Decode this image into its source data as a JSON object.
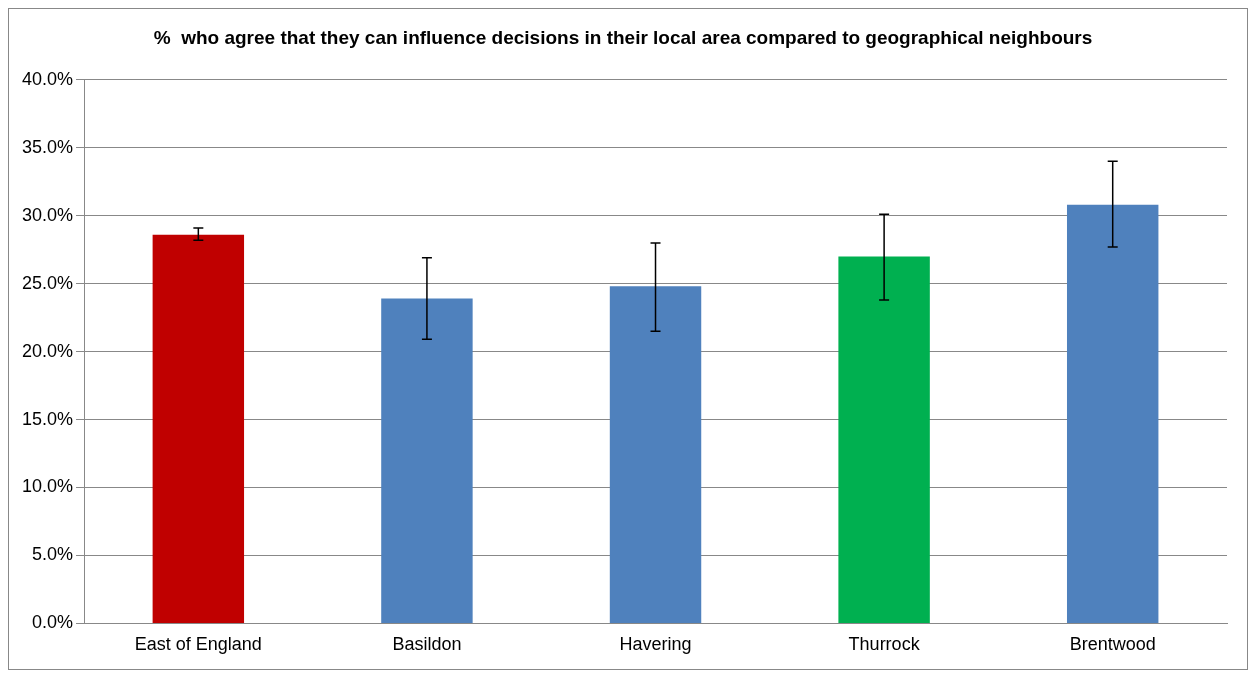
{
  "chart_data": {
    "type": "bar",
    "title": "%  who agree that they can influence decisions in their local area compared to geographical neighbours",
    "categories": [
      "East of England",
      "Basildon",
      "Havering",
      "Thurrock",
      "Brentwood"
    ],
    "values": [
      28.6,
      23.9,
      24.8,
      27.0,
      30.8
    ],
    "colors": [
      "#c00000",
      "#4f81bd",
      "#4f81bd",
      "#00b050",
      "#4f81bd"
    ],
    "errors": [
      [
        28.2,
        29.1
      ],
      [
        20.9,
        26.9
      ],
      [
        21.5,
        28.0
      ],
      [
        23.8,
        30.1
      ],
      [
        27.7,
        34.0
      ]
    ],
    "ylim": [
      0,
      40
    ],
    "yticks": [
      {
        "value": 0,
        "label": "0.0%"
      },
      {
        "value": 5,
        "label": "5.0%"
      },
      {
        "value": 10,
        "label": "10.0%"
      },
      {
        "value": 15,
        "label": "15.0%"
      },
      {
        "value": 20,
        "label": "20.0%"
      },
      {
        "value": 25,
        "label": "25.0%"
      },
      {
        "value": 30,
        "label": "30.0%"
      },
      {
        "value": 35,
        "label": "35.0%"
      },
      {
        "value": 40,
        "label": "40.0%"
      }
    ],
    "grid": "y",
    "legend": false
  }
}
